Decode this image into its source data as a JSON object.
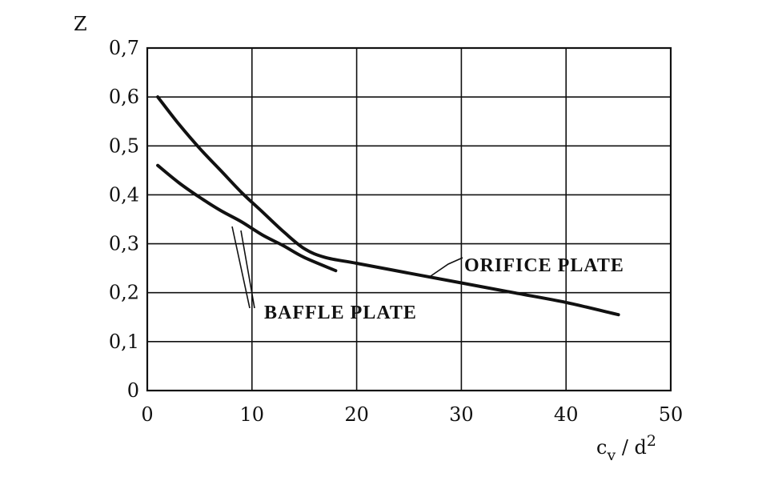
{
  "chart_data": {
    "type": "line",
    "title": "",
    "ylabel": "Z",
    "xlabel": {
      "base": "c",
      "sub": "v",
      "sep": " / d",
      "sup": "2"
    },
    "xlim": [
      0,
      50
    ],
    "ylim": [
      0,
      0.7
    ],
    "x_ticks": [
      0,
      10,
      20,
      30,
      40,
      50
    ],
    "x_tick_labels": [
      "0",
      "10",
      "20",
      "30",
      "40",
      "50"
    ],
    "y_ticks": [
      0,
      0.1,
      0.2,
      0.3,
      0.4,
      0.5,
      0.6,
      0.7
    ],
    "y_tick_labels": [
      "0",
      "0,1",
      "0,2",
      "0,3",
      "0,4",
      "0,5",
      "0,6",
      "0,7"
    ],
    "grid": true,
    "series": [
      {
        "name": "ORIFICE PLATE",
        "x": [
          1,
          3,
          5,
          7,
          9,
          11,
          13,
          15,
          17,
          20,
          25,
          30,
          35,
          40,
          45
        ],
        "y": [
          0.6,
          0.545,
          0.495,
          0.45,
          0.405,
          0.365,
          0.325,
          0.29,
          0.272,
          0.26,
          0.24,
          0.22,
          0.2,
          0.18,
          0.155
        ]
      },
      {
        "name": "BAFFLE PLATE",
        "x": [
          1,
          3,
          5,
          7,
          9,
          11,
          13,
          15,
          18
        ],
        "y": [
          0.46,
          0.425,
          0.395,
          0.368,
          0.345,
          0.318,
          0.296,
          0.272,
          0.245
        ]
      }
    ],
    "annotations": [
      {
        "text": "ORIFICE PLATE",
        "series": 0
      },
      {
        "text": "BAFFLE PLATE",
        "series": 1
      }
    ]
  }
}
